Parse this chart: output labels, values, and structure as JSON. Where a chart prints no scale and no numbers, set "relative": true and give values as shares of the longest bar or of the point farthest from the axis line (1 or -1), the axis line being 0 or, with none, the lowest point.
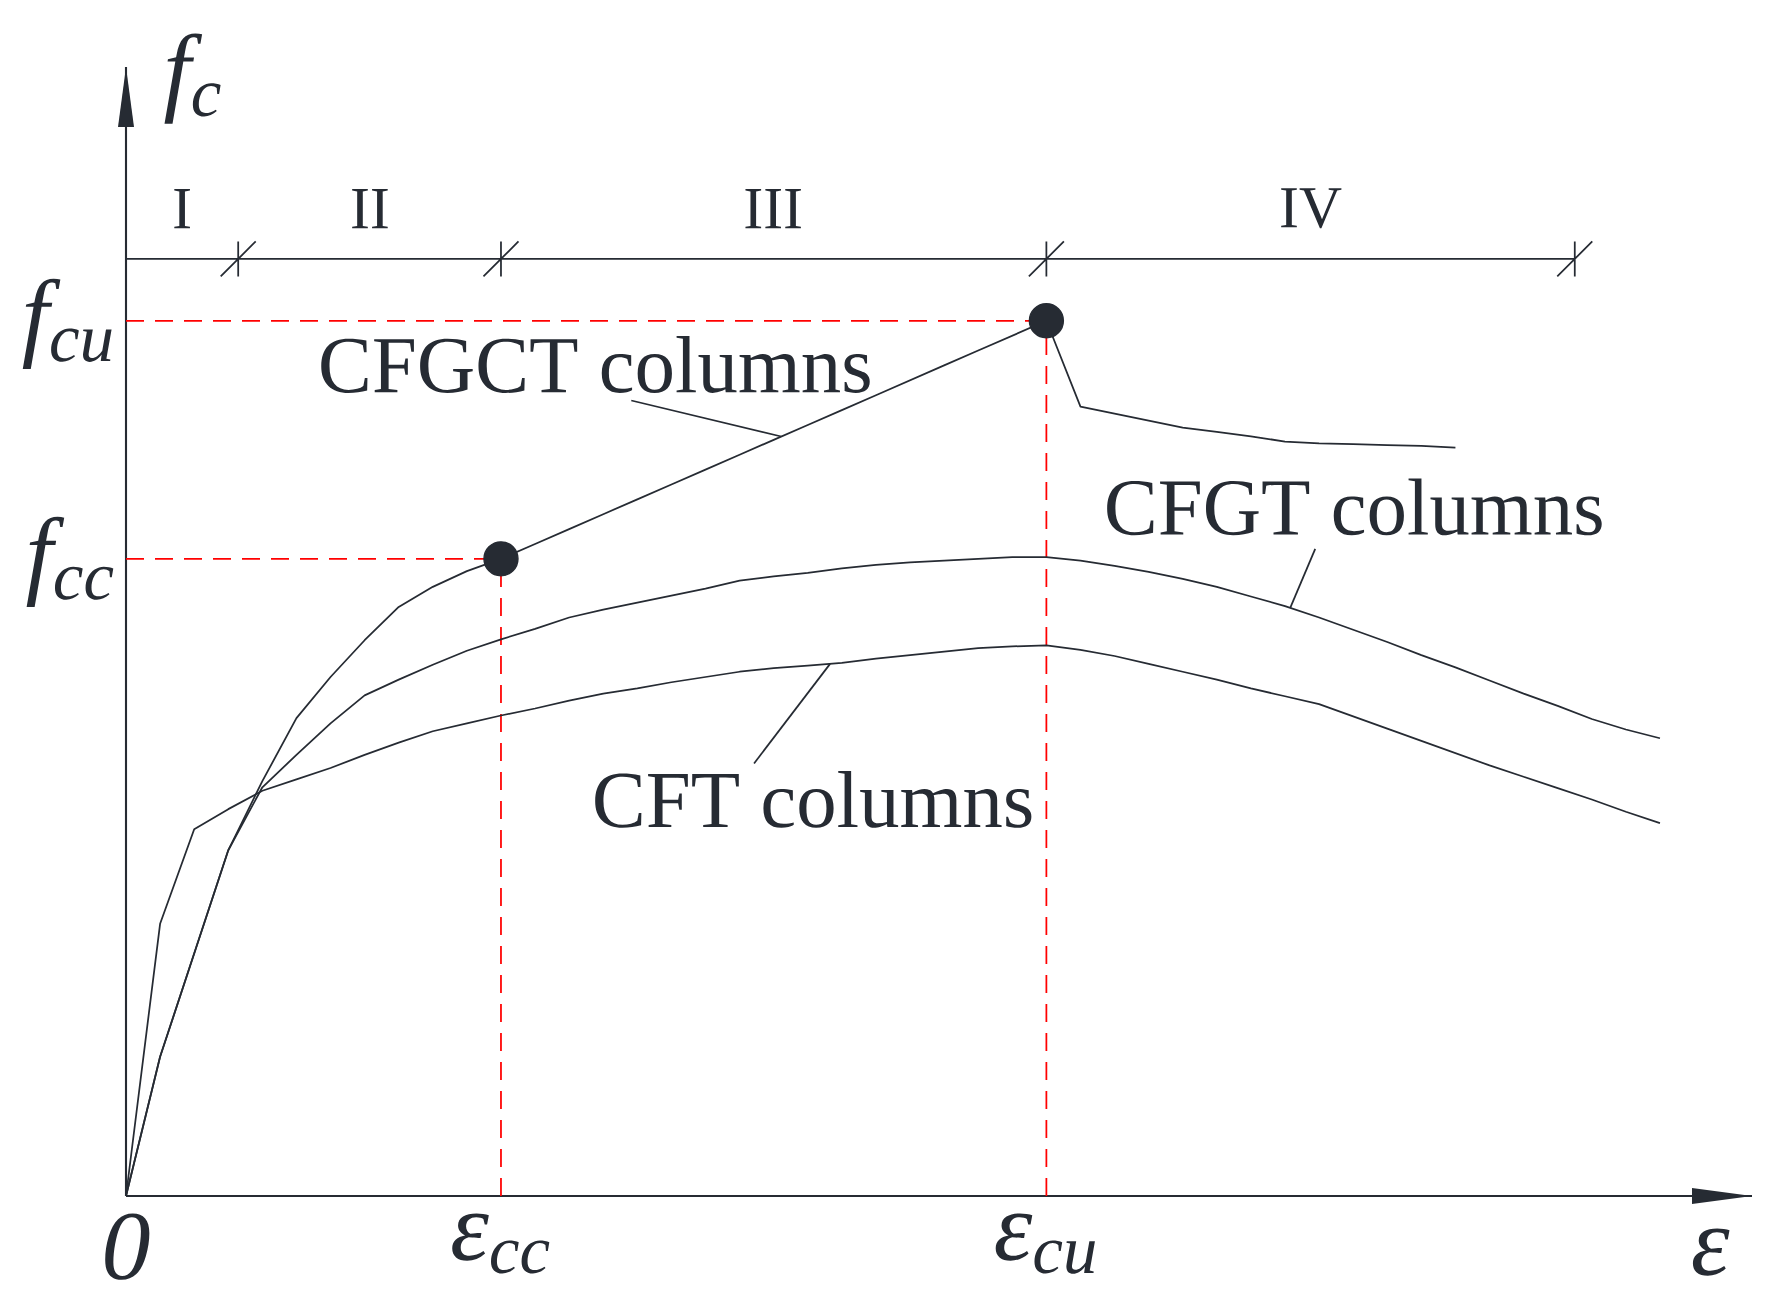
{
  "chart_data": {
    "type": "line",
    "relative": true,
    "xlabel": "ε",
    "ylabel": "f$_{c}$",
    "categories": [
      "0",
      null,
      null,
      null,
      null,
      null,
      null,
      null,
      null,
      null,
      null,
      "ε$_{cc}$",
      null,
      null,
      null,
      null,
      null,
      null,
      null,
      null,
      null,
      null,
      null,
      null,
      null,
      null,
      null,
      "ε$_{cu}$",
      null,
      null,
      null,
      null,
      null,
      null,
      null,
      null,
      null,
      null,
      null,
      null,
      null,
      null,
      null,
      null,
      null,
      null
    ],
    "series": [
      {
        "name": "CFGCT columns",
        "color": "#262b33",
        "values": [
          0,
          0.159,
          0.277,
          0.395,
          0.474,
          0.546,
          0.593,
          0.635,
          0.673,
          0.696,
          0.714,
          0.728,
          0.745,
          0.762,
          0.779,
          0.796,
          0.813,
          0.83,
          0.847,
          0.864,
          0.881,
          0.898,
          0.915,
          0.932,
          0.949,
          0.966,
          0.983,
          1.0,
          0.902,
          0.894,
          0.886,
          0.878,
          0.873,
          0.868,
          0.862,
          0.86,
          0.859,
          0.858,
          0.857,
          0.855,
          null,
          null,
          null,
          null,
          null,
          null
        ]
      },
      {
        "name": "CFGT columns",
        "color": "#262b33",
        "values": [
          0,
          0.159,
          0.277,
          0.395,
          0.467,
          0.504,
          0.54,
          0.572,
          0.59,
          0.607,
          0.623,
          0.636,
          0.648,
          0.661,
          0.67,
          0.678,
          0.686,
          0.694,
          0.703,
          0.708,
          0.712,
          0.717,
          0.721,
          0.724,
          0.726,
          0.728,
          0.73,
          0.73,
          0.726,
          0.72,
          0.713,
          0.705,
          0.696,
          0.685,
          0.674,
          0.661,
          0.647,
          0.633,
          0.618,
          0.604,
          0.589,
          0.574,
          0.56,
          0.545,
          0.533,
          0.523
        ]
      },
      {
        "name": "CFT columns",
        "color": "#262b33",
        "values": [
          0,
          0.311,
          0.419,
          0.442,
          0.463,
          0.476,
          0.489,
          0.504,
          0.518,
          0.531,
          0.54,
          0.549,
          0.557,
          0.566,
          0.574,
          0.58,
          0.587,
          0.593,
          0.599,
          0.603,
          0.606,
          0.609,
          0.614,
          0.618,
          0.622,
          0.626,
          0.628,
          0.629,
          0.624,
          0.617,
          0.608,
          0.599,
          0.59,
          0.58,
          0.571,
          0.562,
          0.548,
          0.534,
          0.52,
          0.506,
          0.492,
          0.479,
          0.466,
          0.453,
          0.439,
          0.426
        ]
      },
      {
        "type": "scatter",
        "marker": "circle",
        "color": "#262b33",
        "values": [
          null,
          null,
          null,
          null,
          null,
          null,
          null,
          null,
          null,
          null,
          null,
          0.728,
          null,
          null,
          null,
          null,
          null,
          null,
          null,
          null,
          null,
          null,
          null,
          null,
          null,
          null,
          null,
          1.0,
          null,
          null,
          null,
          null,
          null,
          null,
          null,
          null,
          null,
          null,
          null,
          null,
          null,
          null,
          null,
          null,
          null,
          null
        ]
      }
    ],
    "ref_lines": [
      {
        "axis": "x",
        "value": "ε$_{cc}$",
        "color": "#ff0000",
        "line_style": "dashed"
      },
      {
        "axis": "y",
        "value": 0.728,
        "label": "f$_{cc}$",
        "color": "#ff0000",
        "line_style": "dashed"
      },
      {
        "axis": "x",
        "value": "ε$_{cu}$",
        "color": "#ff0000",
        "line_style": "dashed"
      },
      {
        "axis": "y",
        "value": 1.0,
        "label": "f$_{cu}$",
        "color": "#ff0000",
        "line_style": "dashed"
      }
    ],
    "annotations": [
      "I",
      "II",
      "III",
      "IV"
    ]
  }
}
